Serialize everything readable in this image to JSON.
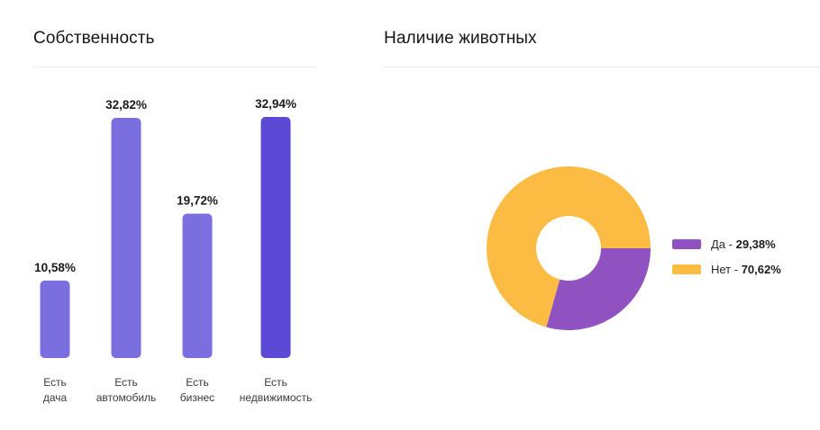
{
  "left_panel": {
    "title": "Собственность"
  },
  "right_panel": {
    "title": "Наличие животных"
  },
  "chart_data": [
    {
      "type": "bar",
      "title": "Собственность",
      "categories": [
        "Есть дача",
        "Есть автомобиль",
        "Есть бизнес",
        "Есть недвижимость"
      ],
      "category_lines": [
        [
          "Есть",
          "дача"
        ],
        [
          "Есть",
          "автомобиль"
        ],
        [
          "Есть",
          "бизнес"
        ],
        [
          "Есть",
          "недвижимость"
        ]
      ],
      "values": [
        10.58,
        32.82,
        19.72,
        32.94
      ],
      "value_labels": [
        "10,58%",
        "32,82%",
        "19,72%",
        "32,94%"
      ],
      "ylim": [
        0,
        32.94
      ],
      "colors": [
        "#7b6fe0",
        "#7b6fe0",
        "#7b6fe0",
        "#5c49d6"
      ],
      "grid": false,
      "legend": "none"
    },
    {
      "type": "pie",
      "subtype": "donut",
      "title": "Наличие животных",
      "labels": [
        "Да",
        "Нет"
      ],
      "values": [
        29.38,
        70.62
      ],
      "value_labels": [
        "29,38%",
        "70,62%"
      ],
      "colors": [
        "#9052c0",
        "#fcbb43"
      ],
      "legend": "right"
    }
  ]
}
